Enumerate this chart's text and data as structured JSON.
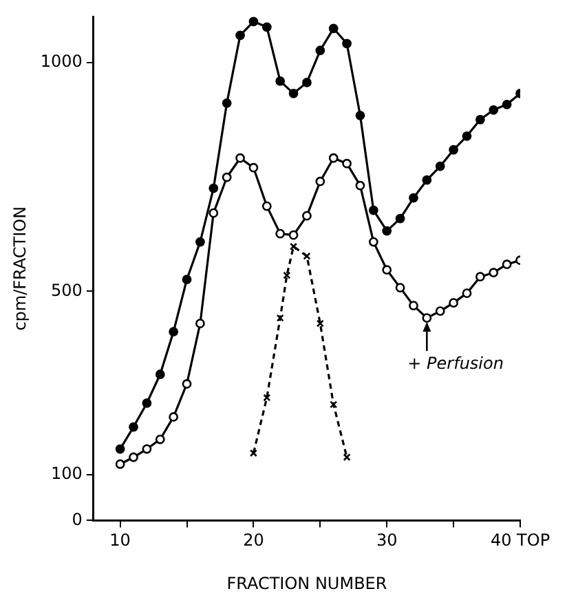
{
  "chart_data": {
    "type": "line",
    "xlabel": "FRACTION NUMBER",
    "ylabel": "cpm/FRACTION",
    "xlim": [
      8,
      40
    ],
    "xticks": [
      10,
      {
        "value": 15,
        "label": null
      },
      20,
      {
        "value": 25,
        "label": null
      },
      30,
      {
        "value": 35,
        "label": null
      },
      {
        "value": 40,
        "label": "40 TOP"
      }
    ],
    "ylim": [
      0,
      1100
    ],
    "yticks": [
      0,
      100,
      500,
      1000
    ],
    "grid": false,
    "legend": false,
    "annotations": [
      {
        "text": "+ Perfusion",
        "x": 33,
        "y": 442
      }
    ],
    "series": [
      {
        "color": "#000000",
        "marker": "circle",
        "line_style": "solid",
        "x": [
          10,
          11,
          12,
          13,
          14,
          15,
          16,
          17,
          18,
          19,
          20,
          21,
          22,
          23,
          24,
          25,
          26,
          27,
          28,
          29,
          30,
          31,
          32,
          33,
          34,
          35,
          36,
          37,
          38,
          39,
          40
        ],
        "values": [
          156,
          204,
          256,
          319,
          412,
          526,
          608,
          725,
          911,
          1059,
          1089,
          1077,
          959,
          932,
          956,
          1026,
          1074,
          1041,
          884,
          677,
          632,
          659,
          704,
          743,
          773,
          809,
          839,
          875,
          896,
          908,
          932
        ]
      },
      {
        "color": "#000000",
        "marker": "circle",
        "line_style": "solid",
        "x": [
          10,
          11,
          12,
          13,
          14,
          15,
          16,
          17,
          18,
          19,
          20,
          21,
          22,
          23,
          24,
          25,
          26,
          27,
          28,
          29,
          30,
          31,
          32,
          33,
          34,
          35,
          36,
          37,
          38,
          39,
          40
        ],
        "values": [
          123,
          138,
          156,
          177,
          226,
          298,
          430,
          671,
          749,
          791,
          770,
          686,
          626,
          623,
          665,
          740,
          791,
          779,
          731,
          608,
          547,
          508,
          469,
          442,
          457,
          475,
          496,
          532,
          541,
          559,
          568
        ]
      },
      {
        "color": "#000000",
        "marker": "cross",
        "line_style": "dashed",
        "x": [
          20,
          21,
          22,
          22.5,
          23,
          24,
          25,
          26,
          27
        ],
        "values": [
          147,
          268,
          442,
          535,
          598,
          577,
          430,
          253,
          138
        ]
      }
    ]
  }
}
